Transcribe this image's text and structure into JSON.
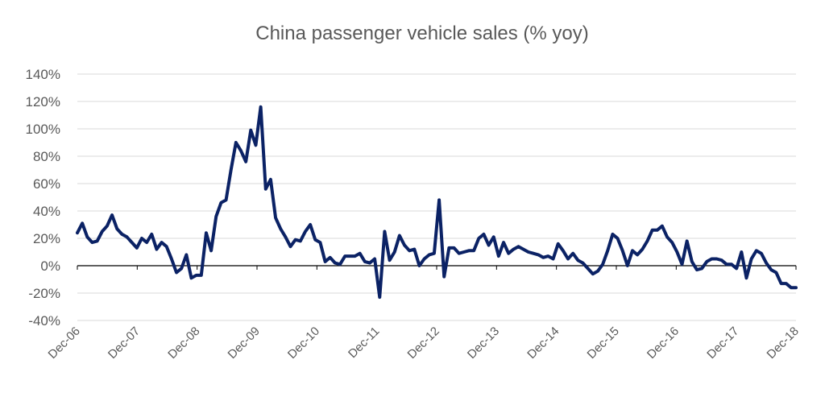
{
  "chart_data": {
    "type": "line",
    "title": "China passenger vehicle sales (% yoy)",
    "xlabel": "",
    "ylabel": "",
    "ylim": [
      -40,
      140
    ],
    "y_ticks": [
      140,
      120,
      100,
      80,
      60,
      40,
      20,
      0,
      -20,
      -40
    ],
    "y_tick_labels": [
      "140%",
      "120%",
      "100%",
      "80%",
      "60%",
      "40%",
      "20%",
      "0%",
      "-20%",
      "-40%"
    ],
    "x_tick_labels": [
      "Dec-06",
      "Dec-07",
      "Dec-08",
      "Dec-09",
      "Dec-10",
      "Dec-11",
      "Dec-12",
      "Dec-13",
      "Dec-14",
      "Dec-15",
      "Dec-16",
      "Dec-17",
      "Dec-18"
    ],
    "grid": true,
    "line_color": "#0b2265",
    "series": [
      {
        "values": [
          24,
          31,
          21,
          17,
          18,
          25,
          29,
          37,
          27,
          23,
          21,
          17,
          13,
          20,
          17,
          23,
          12,
          17,
          14,
          5,
          -5,
          -2,
          8,
          -9,
          -7,
          -7,
          24,
          11,
          36,
          46,
          48,
          70,
          90,
          84,
          76,
          99,
          88,
          116,
          56,
          63,
          35,
          27,
          21,
          14,
          19,
          18,
          25,
          30,
          19,
          17,
          3,
          6,
          2,
          1,
          7,
          7,
          7,
          9,
          3,
          2,
          5,
          -23,
          25,
          4,
          10,
          22,
          15,
          11,
          12,
          0,
          5,
          8,
          9,
          48,
          -8,
          13,
          13,
          9,
          10,
          11,
          11,
          20,
          23,
          15,
          21,
          7,
          17,
          9,
          12,
          14,
          12,
          10,
          9,
          8,
          6,
          7,
          5,
          16,
          11,
          5,
          9,
          4,
          2,
          -2,
          -6,
          -4,
          1,
          11,
          23,
          20,
          11,
          0,
          11,
          8,
          12,
          18,
          26,
          26,
          29,
          21,
          17,
          10,
          1,
          18,
          3,
          -3,
          -2,
          3,
          5,
          5,
          4,
          1,
          1,
          -2,
          10,
          -9,
          5,
          11,
          9,
          2,
          -3,
          -5,
          -13,
          -13,
          -16,
          -16
        ]
      }
    ]
  }
}
